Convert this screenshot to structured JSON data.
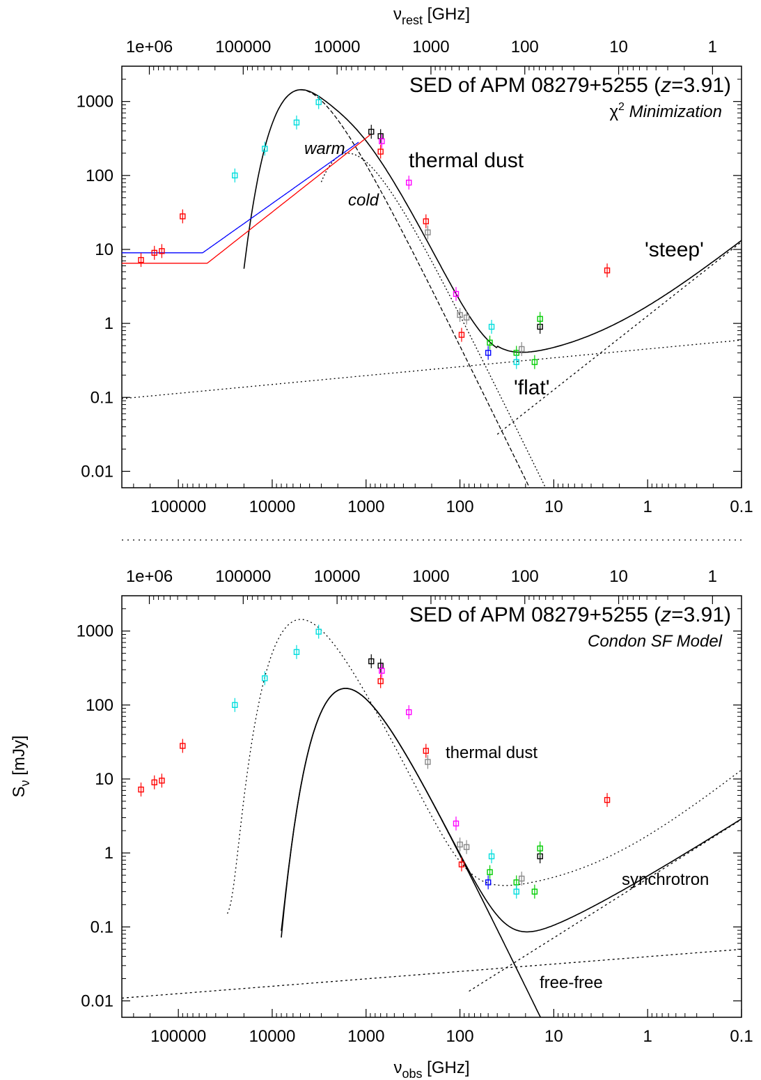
{
  "chart_data": [
    {
      "type": "scatter",
      "title": "SED of APM 08279+5255 (z=3.91)",
      "title_parts": [
        "SED of APM 08279+5255 (",
        "z",
        "=3.91)"
      ],
      "subtitle": "Minimization",
      "subtitle_prefix": "χ",
      "subtitle_sup": "2",
      "x_scale": "log",
      "y_scale": "log",
      "xlim_obs": [
        400000.0,
        0.1
      ],
      "ylim": [
        0.006,
        3000
      ],
      "top_axis_label": "ν",
      "top_axis_label_sub": "rest",
      "top_axis_label_unit": " [GHz]",
      "x_ticks": [
        "100000",
        "10000",
        "1000",
        "100",
        "10",
        "1",
        "0.1"
      ],
      "top_ticks": [
        "1e+06",
        "100000",
        "10000",
        "1000",
        "100",
        "10",
        "1"
      ],
      "y_ticks": [
        "0.01",
        "0.1",
        "1",
        "10",
        "100",
        "1000"
      ],
      "annotations": [
        "warm",
        "cold",
        "thermal dust",
        "'steep'",
        "'flat'"
      ],
      "series": [
        {
          "kind": "points",
          "color": "#ff0000",
          "x": [
            250000,
            180000,
            150000,
            90000
          ],
          "y": [
            7.2,
            9,
            9.5,
            28
          ]
        },
        {
          "kind": "points",
          "color": "#00dddd",
          "x": [
            25000,
            12000,
            5500,
            3200
          ],
          "y": [
            100,
            230,
            520,
            980
          ]
        },
        {
          "kind": "points",
          "color": "#000000",
          "x": [
            880,
            700,
            14
          ],
          "y": [
            390,
            340,
            0.9
          ]
        },
        {
          "kind": "points",
          "color": "#ff00ff",
          "x": [
            680,
            350,
            110
          ],
          "y": [
            290,
            80,
            2.5
          ]
        },
        {
          "kind": "points",
          "color": "#ff0000",
          "x": [
            700,
            230,
            96,
            2.7
          ],
          "y": [
            210,
            24,
            0.7,
            5.2
          ]
        },
        {
          "kind": "points",
          "color": "#00cc00",
          "x": [
            25,
            16,
            48,
            14
          ],
          "y": [
            0.4,
            0.3,
            0.55,
            1.15
          ]
        },
        {
          "kind": "points",
          "color": "#0000ff",
          "x": [
            50
          ],
          "y": [
            0.4
          ]
        },
        {
          "kind": "points",
          "color": "#00dddd",
          "x": [
            46,
            25
          ],
          "y": [
            0.9,
            0.3
          ]
        },
        {
          "kind": "points",
          "color": "#888888",
          "x": [
            220,
            100,
            85,
            22
          ],
          "y": [
            17,
            1.3,
            1.2,
            0.45
          ]
        }
      ]
    },
    {
      "type": "scatter",
      "title": "SED of APM 08279+5255 (z=3.91)",
      "title_parts": [
        "SED of APM 08279+5255 (",
        "z",
        "=3.91)"
      ],
      "subtitle": "Condon SF Model",
      "x_scale": "log",
      "y_scale": "log",
      "xlim_obs": [
        400000.0,
        0.1
      ],
      "ylim": [
        0.006,
        3000
      ],
      "xlabel": "ν",
      "xlabel_sub": "obs",
      "xlabel_unit": " [GHz]",
      "ylabel": "S",
      "ylabel_sub": "ν",
      "ylabel_unit": " [mJy]",
      "x_ticks": [
        "100000",
        "10000",
        "1000",
        "100",
        "10",
        "1",
        "0.1"
      ],
      "top_ticks": [
        "1e+06",
        "100000",
        "10000",
        "1000",
        "100",
        "10",
        "1"
      ],
      "y_ticks": [
        "0.01",
        "0.1",
        "1",
        "10",
        "100",
        "1000"
      ],
      "annotations": [
        "thermal dust",
        "synchrotron",
        "free-free"
      ],
      "series": [
        {
          "kind": "points",
          "color": "#ff0000",
          "x": [
            250000,
            180000,
            150000,
            90000
          ],
          "y": [
            7.2,
            9,
            9.5,
            28
          ]
        },
        {
          "kind": "points",
          "color": "#00dddd",
          "x": [
            25000,
            12000,
            5500,
            3200
          ],
          "y": [
            100,
            230,
            520,
            980
          ]
        },
        {
          "kind": "points",
          "color": "#000000",
          "x": [
            880,
            700,
            14
          ],
          "y": [
            390,
            340,
            0.9
          ]
        },
        {
          "kind": "points",
          "color": "#ff00ff",
          "x": [
            680,
            350,
            110
          ],
          "y": [
            290,
            80,
            2.5
          ]
        },
        {
          "kind": "points",
          "color": "#ff0000",
          "x": [
            700,
            230,
            96,
            2.7
          ],
          "y": [
            210,
            24,
            0.7,
            5.2
          ]
        },
        {
          "kind": "points",
          "color": "#00cc00",
          "x": [
            25,
            16,
            48,
            14
          ],
          "y": [
            0.4,
            0.3,
            0.55,
            1.15
          ]
        },
        {
          "kind": "points",
          "color": "#0000ff",
          "x": [
            50
          ],
          "y": [
            0.4
          ]
        },
        {
          "kind": "points",
          "color": "#00dddd",
          "x": [
            46,
            25
          ],
          "y": [
            0.9,
            0.3
          ]
        },
        {
          "kind": "points",
          "color": "#888888",
          "x": [
            220,
            100,
            85,
            22
          ],
          "y": [
            17,
            1.3,
            1.2,
            0.45
          ]
        }
      ]
    }
  ]
}
